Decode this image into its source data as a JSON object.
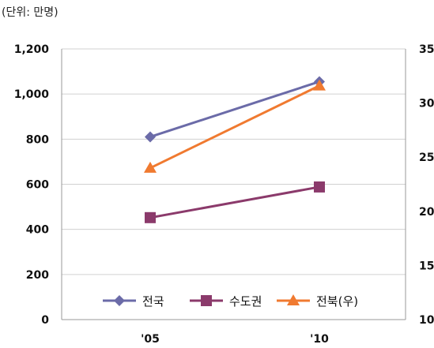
{
  "chart_data": {
    "type": "line",
    "unit_note": "(단위: 만명)",
    "categories": [
      "'05",
      "'10"
    ],
    "y_left": {
      "range": [
        0,
        1200
      ],
      "ticks": [
        "0",
        "200",
        "400",
        "600",
        "800",
        "1,000",
        "1,200"
      ]
    },
    "y_right": {
      "range": [
        10,
        35
      ],
      "ticks": [
        "10",
        "15",
        "20",
        "25",
        "30",
        "35"
      ]
    },
    "grid": true,
    "legend_position": "bottom-inside",
    "series": [
      {
        "name": "전국",
        "axis": "left",
        "values": [
          810,
          1055
        ],
        "color": "#6b6ba8",
        "marker": "diamond"
      },
      {
        "name": "수도권",
        "axis": "left",
        "values": [
          452,
          588
        ],
        "color": "#8b3a6b",
        "marker": "square"
      },
      {
        "name": "전북(우)",
        "axis": "right",
        "values": [
          24.0,
          31.6
        ],
        "color": "#f07a30",
        "marker": "triangle"
      }
    ]
  }
}
